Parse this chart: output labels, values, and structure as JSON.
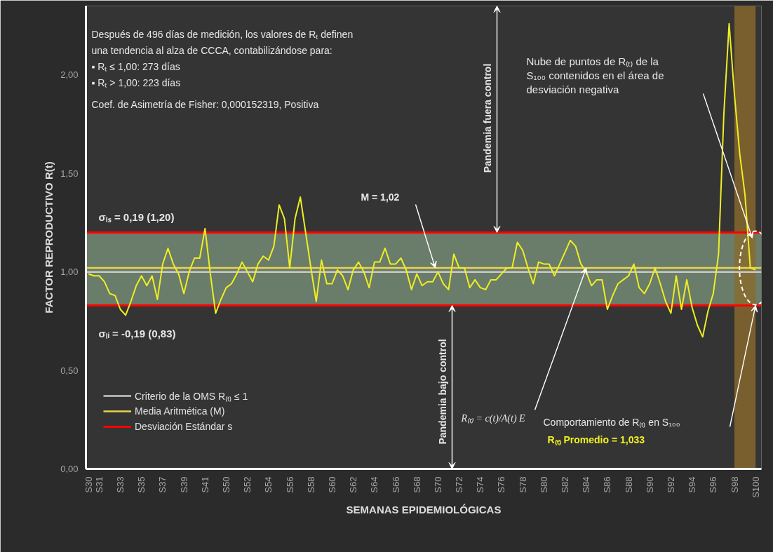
{
  "chart_data": {
    "type": "line",
    "xlabel": "SEMANAS EPIDEMIOLÓGICAS",
    "ylabel": "FACTOR REPRODUCTIVO R(t)",
    "ylim": [
      0,
      2.35
    ],
    "categories": [
      "S30",
      null,
      "S31",
      null,
      null,
      null,
      "S33",
      null,
      null,
      null,
      "S35",
      null,
      null,
      null,
      "S37",
      null,
      null,
      null,
      "S39",
      null,
      null,
      null,
      "S41",
      null,
      null,
      null,
      "S50",
      null,
      null,
      null,
      "S52",
      null,
      null,
      null,
      "S54",
      null,
      null,
      null,
      "S56",
      null,
      null,
      null,
      "S58",
      null,
      null,
      null,
      "S60",
      null,
      null,
      null,
      "S62",
      null,
      null,
      null,
      "S64",
      null,
      null,
      null,
      "S66",
      null,
      null,
      null,
      "S68",
      null,
      null,
      null,
      "S70",
      null,
      null,
      null,
      "S72",
      null,
      null,
      null,
      "S74",
      null,
      null,
      null,
      "S76",
      null,
      null,
      null,
      "S78",
      null,
      null,
      null,
      "S80",
      null,
      null,
      null,
      "S82",
      null,
      null,
      null,
      "S84",
      null,
      null,
      null,
      "S86",
      null,
      null,
      null,
      "S88",
      null,
      null,
      null,
      "S90",
      null,
      null,
      null,
      "S92",
      null,
      null,
      null,
      "S94",
      null,
      null,
      null,
      "S96",
      null,
      null,
      null,
      "S98",
      null,
      null,
      null,
      "S100"
    ],
    "yticks": [
      {
        "value": 0,
        "label": "0,00"
      },
      {
        "value": 0.5,
        "label": "0,50"
      },
      {
        "value": 1,
        "label": "1,00"
      },
      {
        "value": 1.5,
        "label": "1,50"
      },
      {
        "value": 2,
        "label": "2,00"
      }
    ],
    "series": [
      {
        "color": "#eeee22",
        "values": [
          0.99,
          0.98,
          0.98,
          0.95,
          0.89,
          0.88,
          0.81,
          0.78,
          0.85,
          0.93,
          0.98,
          0.93,
          0.98,
          0.86,
          1.04,
          1.12,
          1.04,
          0.99,
          0.89,
          1.0,
          1.07,
          1.07,
          1.22,
          0.99,
          0.79,
          0.86,
          0.92,
          0.94,
          0.99,
          1.05,
          1.0,
          0.95,
          1.04,
          1.08,
          1.06,
          1.13,
          1.34,
          1.27,
          1.02,
          1.27,
          1.38,
          1.2,
          1.02,
          0.85,
          1.06,
          0.94,
          0.94,
          1.01,
          0.98,
          0.91,
          1.01,
          1.05,
          1.0,
          0.92,
          1.05,
          1.05,
          1.12,
          1.04,
          1.04,
          1.07,
          1.01,
          0.91,
          0.99,
          0.93,
          0.95,
          0.95,
          1.0,
          0.94,
          0.91,
          1.09,
          1.02,
          1.02,
          0.92,
          0.96,
          0.92,
          0.91,
          0.96,
          0.96,
          0.99,
          1.02,
          1.02,
          1.15,
          1.11,
          1.02,
          0.94,
          1.05,
          1.04,
          1.04,
          0.98,
          1.04,
          1.1,
          1.16,
          1.13,
          1.04,
          1.0,
          0.93,
          0.96,
          0.96,
          0.81,
          0.88,
          0.94,
          0.96,
          0.98,
          1.04,
          0.92,
          0.89,
          0.94,
          1.02,
          0.94,
          0.85,
          0.79,
          0.98,
          0.81,
          0.96,
          0.82,
          0.73,
          0.67,
          0.8,
          0.89,
          1.09,
          1.8,
          2.26,
          1.9,
          1.6,
          1.39,
          1.02,
          1.01
        ]
      }
    ],
    "ref_lines": [
      {
        "axis": "y",
        "value": 1.0,
        "label": "Criterio de la OMS R₍ₜ₎ ≤ 1",
        "color": "#c8c8c8"
      },
      {
        "axis": "y",
        "value": 1.02,
        "label": "Media Aritmética (M)",
        "color": "#e8d44d"
      },
      {
        "axis": "y",
        "value": 1.2,
        "label": "Desviación Estándar s",
        "color": "#ff0000"
      },
      {
        "axis": "y",
        "value": 0.83,
        "color": "#ff0000"
      }
    ],
    "bands": [
      {
        "axis": "y",
        "from": 0.83,
        "to": 1.2,
        "color": "#8fae90"
      },
      {
        "axis": "x",
        "from": "S98",
        "to": "S100",
        "color": "#8b6a2c"
      }
    ],
    "legend": "bottom left",
    "annotations": [
      "Después de 496 días de medición, los valores de Rₜ definen",
      "una tendencia al alza de CCCA, contabilizándose para:",
      "▪ Rₜ ≤ 1,00: 273 días",
      "▪ Rₜ > 1,00: 223 días",
      "Coef. de Asimetría de Fisher: 0,000152319,  Positiva",
      {
        "text": "σₗₛ = 0,19 (1,20)",
        "y": 1.2
      },
      {
        "text": "σₗᵢ = -0,19 (0,83)",
        "y": 0.83
      },
      "M = 1,02",
      "Pandemia fuera control",
      "Pandemia bajo control",
      {
        "text": "R₍ₜ₎ = c(t)/A(t) E",
        "x": "S84",
        "y": 1.02
      },
      "Nube de puntos de R₍ₜ₎ de la S₁₀₀ contenidos en el área de desviación negativa",
      "Comportamiento de R₍ₜ₎ en S₁₀₀",
      "R₍ₜ₎ Promedio = 1,033"
    ]
  }
}
